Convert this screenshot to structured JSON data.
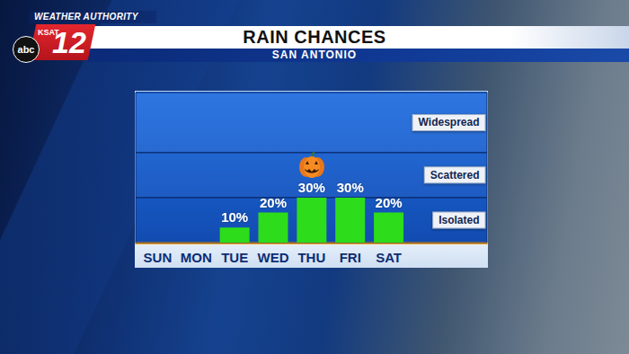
{
  "chart_data": {
    "type": "bar",
    "title": "RAIN CHANCES",
    "subtitle": "SAN ANTONIO",
    "categories": [
      "SUN",
      "MON",
      "TUE",
      "WED",
      "THU",
      "FRI",
      "SAT"
    ],
    "values": [
      null,
      null,
      10,
      20,
      30,
      30,
      20
    ],
    "value_labels": [
      null,
      null,
      "10%",
      "20%",
      "30%",
      "30%",
      "20%"
    ],
    "color": "#2ddc1a",
    "ylim": [
      0,
      100
    ],
    "bands": [
      {
        "label": "Isolated",
        "range": [
          0,
          30
        ]
      },
      {
        "label": "Scattered",
        "range": [
          30,
          60
        ]
      },
      {
        "label": "Widespread",
        "range": [
          60,
          100
        ]
      }
    ],
    "data_labels": true,
    "tick_labels": "x",
    "grid": false
  },
  "branding": {
    "tagline": "WEATHER AUTHORITY",
    "station": "KSAT",
    "channel": "12",
    "network": "abc"
  }
}
